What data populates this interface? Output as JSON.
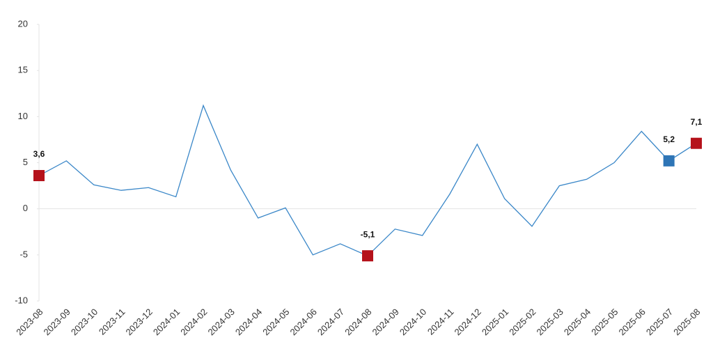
{
  "chart_data": {
    "type": "line",
    "categories": [
      "2023-08",
      "2023-09",
      "2023-10",
      "2023-11",
      "2023-12",
      "2024-01",
      "2024-02",
      "2024-03",
      "2024-04",
      "2024-05",
      "2024-06",
      "2024-07",
      "2024-08",
      "2024-09",
      "2024-10",
      "2024-11",
      "2024-12",
      "2025-01",
      "2025-02",
      "2025-03",
      "2025-04",
      "2025-05",
      "2025-06",
      "2025-07",
      "2025-08"
    ],
    "values": [
      3.6,
      5.2,
      2.6,
      2.0,
      2.3,
      1.3,
      11.2,
      4.2,
      -1.0,
      0.1,
      -5.0,
      -3.8,
      -5.1,
      -2.2,
      -2.9,
      1.6,
      7.0,
      1.1,
      -1.9,
      2.5,
      3.2,
      5.0,
      8.4,
      5.2,
      7.1
    ],
    "value_labels": [
      "3,6",
      null,
      null,
      null,
      null,
      null,
      null,
      null,
      null,
      null,
      null,
      null,
      "-5,1",
      null,
      null,
      null,
      null,
      null,
      null,
      null,
      null,
      null,
      null,
      "5,2",
      "7,1"
    ],
    "marker_colors": [
      "#b5121b",
      null,
      null,
      null,
      null,
      null,
      null,
      null,
      null,
      null,
      null,
      null,
      "#b5121b",
      null,
      null,
      null,
      null,
      null,
      null,
      null,
      null,
      null,
      null,
      "#2e75b6",
      "#b5121b"
    ],
    "color": "#3a87c8",
    "ylim": [
      -10,
      20
    ],
    "yticks": [
      -10,
      -5,
      0,
      5,
      10,
      15,
      20
    ]
  }
}
